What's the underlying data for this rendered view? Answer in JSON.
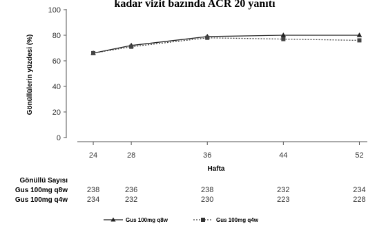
{
  "chart_data": {
    "type": "line",
    "title": "kadar vizit bazında ACR 20 yanıtı",
    "xlabel": "Hafta",
    "ylabel": "Gönüllülerin yüzdesi (%)",
    "x": [
      24,
      28,
      36,
      44,
      52
    ],
    "x_ticks": [
      "24",
      "28",
      "36",
      "44",
      "52"
    ],
    "xlim": [
      20,
      54
    ],
    "ylim": [
      0,
      100
    ],
    "y_ticks": [
      "0",
      "20",
      "40",
      "60",
      "80",
      "100"
    ],
    "grid": false,
    "legend_position": "bottom",
    "series": [
      {
        "name": "Gus 100mg q8w",
        "values": [
          66,
          72,
          79,
          80,
          80
        ],
        "color": "#222222",
        "line_style": "solid",
        "marker": "triangle"
      },
      {
        "name": "Gus 100mg q4w",
        "values": [
          66,
          71,
          78,
          77,
          76
        ],
        "color": "#444444",
        "line_style": "dotted",
        "marker": "square"
      }
    ],
    "subjects_table": {
      "header": "Gönüllü Sayısı",
      "rows": [
        {
          "label": "Gus 100mg q8w",
          "values": [
            "238",
            "236",
            "238",
            "232",
            "234"
          ]
        },
        {
          "label": "Gus 100mg q4w",
          "values": [
            "234",
            "232",
            "230",
            "223",
            "228"
          ]
        }
      ]
    }
  }
}
